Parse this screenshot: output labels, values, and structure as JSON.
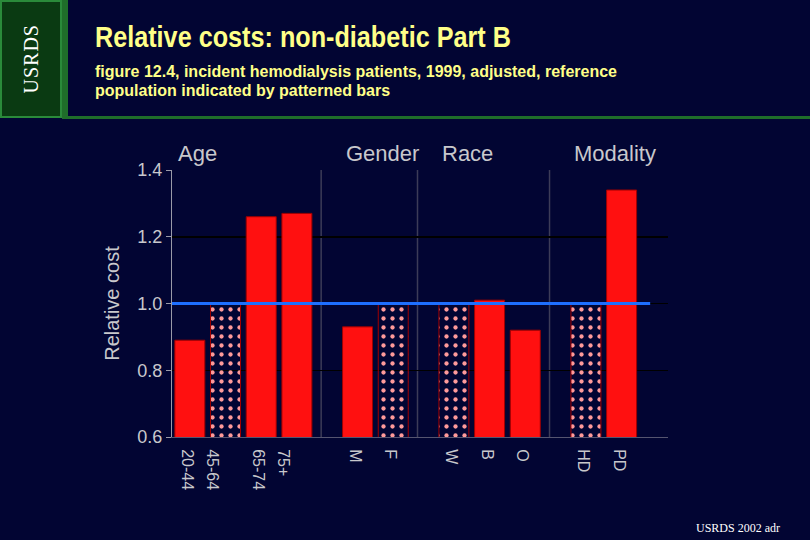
{
  "chart_data": {
    "type": "bar",
    "logo": "USRDS",
    "title": "Relative costs: non-diabetic Part B",
    "subtitle": "figure 12.4, incident hemodialysis patients, 1999, adjusted, reference population indicated by patterned bars",
    "source": "USRDS 2002 adr",
    "y_label": "Relative cost",
    "groups": [
      {
        "label": "Age",
        "categories": [
          "20-44",
          "45-64",
          "65-74",
          "75+"
        ],
        "values": [
          0.89,
          1.0,
          1.26,
          1.27
        ],
        "reference": "45-64"
      },
      {
        "label": "Gender",
        "categories": [
          "M",
          "F"
        ],
        "values": [
          0.93,
          1.0
        ],
        "reference": "F"
      },
      {
        "label": "Race",
        "categories": [
          "W",
          "B",
          "O"
        ],
        "values": [
          1.0,
          1.01,
          0.92
        ],
        "reference": "W"
      },
      {
        "label": "Modality",
        "categories": [
          "HD",
          "PD"
        ],
        "values": [
          1.0,
          1.34
        ],
        "reference": "HD"
      }
    ],
    "color": "#ff1010",
    "ylim": [
      0.6,
      1.4
    ],
    "yticks": [
      0.6,
      0.8,
      {
        "value": 1,
        "label": "1.0"
      },
      1.2,
      1.4
    ],
    "grid": true,
    "reference_line": 1
  }
}
